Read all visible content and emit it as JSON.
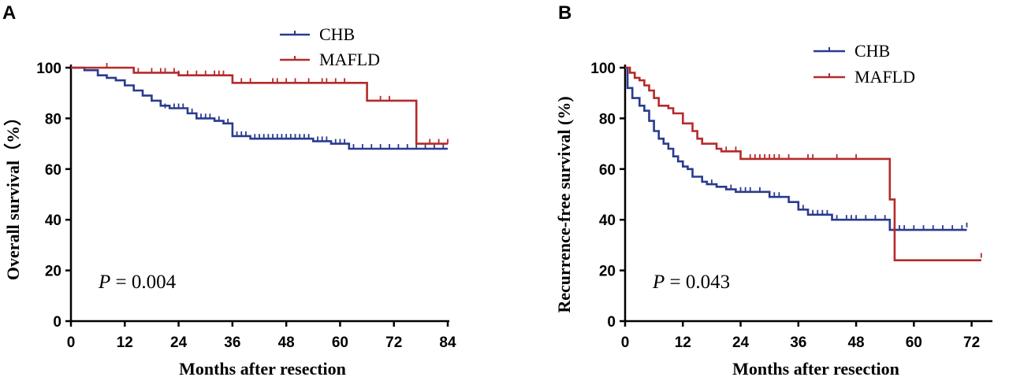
{
  "colors": {
    "chb": "#2a3a8f",
    "mafld": "#b52a2a"
  },
  "chart_data": [
    {
      "panel": "A",
      "type": "line",
      "subtype": "kaplan-meier",
      "title": "",
      "xlabel": "Months after resection",
      "ylabel": "Overall survival（%）",
      "xlim": [
        0,
        84
      ],
      "ylim": [
        0,
        100
      ],
      "xticks": [
        "0",
        "12",
        "24",
        "36",
        "48",
        "60",
        "72",
        "84"
      ],
      "yticks": [
        "0",
        "20",
        "40",
        "60",
        "80",
        "100"
      ],
      "legend": [
        "CHB",
        "MAFLD"
      ],
      "legend_position": "top-right",
      "annotation": {
        "label": "P",
        "text": "= 0.004"
      },
      "series": [
        {
          "name": "CHB",
          "steps": [
            [
              0,
              100
            ],
            [
              3,
              99
            ],
            [
              6,
              97
            ],
            [
              8,
              96
            ],
            [
              10,
              95
            ],
            [
              12,
              93
            ],
            [
              14,
              91
            ],
            [
              16,
              89
            ],
            [
              18,
              87
            ],
            [
              20,
              85
            ],
            [
              22,
              84
            ],
            [
              26,
              82
            ],
            [
              28,
              80
            ],
            [
              32,
              79
            ],
            [
              34,
              78
            ],
            [
              36,
              73
            ],
            [
              40,
              72
            ],
            [
              54,
              71
            ],
            [
              58,
              70
            ],
            [
              62,
              68
            ],
            [
              84,
              68
            ]
          ],
          "censored": [
            [
              21,
              84
            ],
            [
              23,
              84
            ],
            [
              24,
              84
            ],
            [
              25,
              84
            ],
            [
              26,
              82
            ],
            [
              27,
              82
            ],
            [
              29,
              80
            ],
            [
              30,
              80
            ],
            [
              31,
              80
            ],
            [
              33,
              79
            ],
            [
              35,
              78
            ],
            [
              37,
              73
            ],
            [
              38,
              73
            ],
            [
              39,
              73
            ],
            [
              41,
              72
            ],
            [
              42,
              72
            ],
            [
              43,
              72
            ],
            [
              44,
              72
            ],
            [
              45,
              72
            ],
            [
              46,
              72
            ],
            [
              47,
              72
            ],
            [
              48,
              72
            ],
            [
              49,
              72
            ],
            [
              50,
              72
            ],
            [
              51,
              72
            ],
            [
              52,
              72
            ],
            [
              53,
              72
            ],
            [
              55,
              71
            ],
            [
              56,
              71
            ],
            [
              57,
              71
            ],
            [
              59,
              70
            ],
            [
              60,
              70
            ],
            [
              61,
              70
            ],
            [
              63,
              68
            ],
            [
              65,
              68
            ],
            [
              67,
              68
            ],
            [
              69,
              68
            ],
            [
              71,
              68
            ],
            [
              73,
              68
            ],
            [
              75,
              68
            ],
            [
              77,
              68
            ],
            [
              79,
              68
            ],
            [
              81,
              68
            ],
            [
              83,
              68
            ]
          ]
        },
        {
          "name": "MAFLD",
          "steps": [
            [
              0,
              100
            ],
            [
              2,
              100
            ],
            [
              14,
              98
            ],
            [
              24,
              97
            ],
            [
              36,
              94
            ],
            [
              66,
              94
            ],
            [
              66,
              87
            ],
            [
              77,
              87
            ],
            [
              77,
              70
            ],
            [
              84,
              70
            ]
          ],
          "censored": [
            [
              8,
              100
            ],
            [
              15,
              98
            ],
            [
              18,
              98
            ],
            [
              20,
              98
            ],
            [
              21,
              98
            ],
            [
              23,
              98
            ],
            [
              24,
              97
            ],
            [
              26,
              97
            ],
            [
              28,
              97
            ],
            [
              30,
              97
            ],
            [
              32,
              97
            ],
            [
              33,
              97
            ],
            [
              34,
              97
            ],
            [
              38,
              94
            ],
            [
              40,
              94
            ],
            [
              45,
              94
            ],
            [
              46,
              94
            ],
            [
              48,
              94
            ],
            [
              50,
              94
            ],
            [
              53,
              94
            ],
            [
              56,
              94
            ],
            [
              57,
              94
            ],
            [
              59,
              94
            ],
            [
              61,
              94
            ],
            [
              69,
              87
            ],
            [
              71,
              87
            ],
            [
              80,
              70
            ],
            [
              82,
              70
            ],
            [
              84,
              70
            ]
          ]
        }
      ]
    },
    {
      "panel": "B",
      "type": "line",
      "subtype": "kaplan-meier",
      "title": "",
      "xlabel": "Months after resection",
      "ylabel": "Recurrence-free survival (%)",
      "xlim": [
        0,
        76
      ],
      "ylim": [
        0,
        100
      ],
      "xticks": [
        "0",
        "12",
        "24",
        "36",
        "48",
        "60",
        "72"
      ],
      "yticks": [
        "0",
        "20",
        "40",
        "60",
        "80",
        "100"
      ],
      "legend": [
        "CHB",
        "MAFLD"
      ],
      "legend_position": "top-right",
      "annotation": {
        "label": "P",
        "text": "= 0.043"
      },
      "series": [
        {
          "name": "CHB",
          "steps": [
            [
              0,
              100
            ],
            [
              0.5,
              92
            ],
            [
              1.5,
              88
            ],
            [
              3,
              85
            ],
            [
              4,
              83
            ],
            [
              5,
              79
            ],
            [
              6,
              75
            ],
            [
              7,
              72
            ],
            [
              8,
              70
            ],
            [
              9,
              68
            ],
            [
              10,
              65
            ],
            [
              11,
              63
            ],
            [
              12,
              61
            ],
            [
              13,
              60
            ],
            [
              14,
              57
            ],
            [
              16,
              55
            ],
            [
              17,
              54
            ],
            [
              19,
              53
            ],
            [
              21,
              52
            ],
            [
              23,
              51
            ],
            [
              27,
              51
            ],
            [
              30,
              49
            ],
            [
              34,
              47
            ],
            [
              36,
              44
            ],
            [
              38,
              42
            ],
            [
              43,
              40
            ],
            [
              55,
              40
            ],
            [
              55,
              36
            ],
            [
              71,
              36
            ]
          ],
          "censored": [
            [
              18,
              54
            ],
            [
              22,
              52
            ],
            [
              24,
              51
            ],
            [
              25,
              51
            ],
            [
              26,
              51
            ],
            [
              28,
              51
            ],
            [
              31,
              49
            ],
            [
              32,
              49
            ],
            [
              37,
              44
            ],
            [
              39,
              42
            ],
            [
              40,
              42
            ],
            [
              41,
              42
            ],
            [
              42,
              42
            ],
            [
              44,
              40
            ],
            [
              46,
              40
            ],
            [
              47,
              40
            ],
            [
              48,
              40
            ],
            [
              50,
              40
            ],
            [
              52,
              40
            ],
            [
              54,
              40
            ],
            [
              57,
              36
            ],
            [
              58,
              36
            ],
            [
              60,
              36
            ],
            [
              62,
              36
            ],
            [
              64,
              36
            ],
            [
              66,
              36
            ],
            [
              68,
              36
            ],
            [
              70,
              36
            ],
            [
              71,
              37
            ]
          ]
        },
        {
          "name": "MAFLD",
          "steps": [
            [
              0,
              100
            ],
            [
              1,
              98
            ],
            [
              2,
              96
            ],
            [
              3,
              95
            ],
            [
              4,
              93
            ],
            [
              5,
              91
            ],
            [
              6,
              88
            ],
            [
              7,
              85
            ],
            [
              9,
              84
            ],
            [
              10,
              82
            ],
            [
              12,
              78
            ],
            [
              14,
              75
            ],
            [
              15,
              72
            ],
            [
              16,
              70
            ],
            [
              17,
              70
            ],
            [
              19,
              68
            ],
            [
              20,
              67
            ],
            [
              24,
              64
            ],
            [
              55,
              64
            ],
            [
              55,
              48
            ],
            [
              56,
              48
            ],
            [
              56,
              24
            ],
            [
              74,
              24
            ]
          ],
          "censored": [
            [
              21,
              67
            ],
            [
              23,
              67
            ],
            [
              26,
              64
            ],
            [
              27,
              64
            ],
            [
              28,
              64
            ],
            [
              29,
              64
            ],
            [
              30,
              64
            ],
            [
              31,
              64
            ],
            [
              32,
              64
            ],
            [
              34,
              64
            ],
            [
              38,
              64
            ],
            [
              39,
              64
            ],
            [
              44,
              64
            ],
            [
              48,
              64
            ],
            [
              74,
              25
            ]
          ]
        }
      ]
    }
  ]
}
